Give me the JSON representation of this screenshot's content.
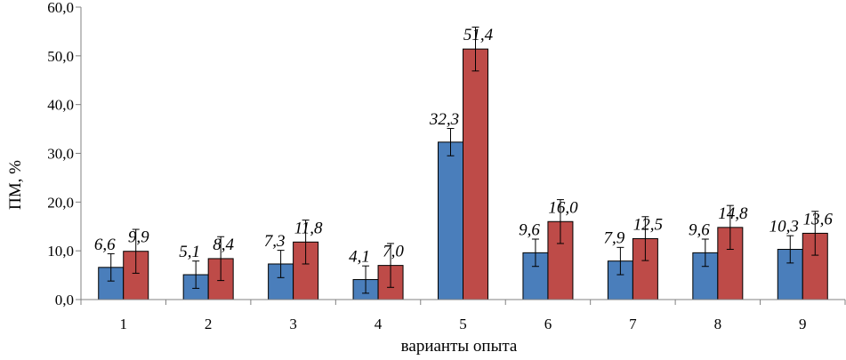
{
  "chart_data": {
    "type": "bar",
    "title": "",
    "xlabel": "варианты опыта",
    "ylabel": "ПМ, %",
    "ylim": [
      0,
      60
    ],
    "yticks": [
      "0,0",
      "10,0",
      "20,0",
      "30,0",
      "40,0",
      "50,0",
      "60,0"
    ],
    "grid": false,
    "legend": "none",
    "categories": [
      "1",
      "2",
      "3",
      "4",
      "5",
      "6",
      "7",
      "8",
      "9"
    ],
    "series": [
      {
        "color": "#4a7ebb",
        "values": [
          6.6,
          5.1,
          7.3,
          4.1,
          32.3,
          9.6,
          7.9,
          9.6,
          10.3
        ],
        "labels": [
          "6,6",
          "5,1",
          "7,3",
          "4,1",
          "32,3",
          "9,6",
          "7,9",
          "9,6",
          "10,3"
        ],
        "errors": [
          2.8,
          2.8,
          2.8,
          2.8,
          2.8,
          2.8,
          2.8,
          2.8,
          2.8
        ]
      },
      {
        "color": "#be4b48",
        "values": [
          9.9,
          8.4,
          11.8,
          7.0,
          51.4,
          16.0,
          12.5,
          14.8,
          13.6
        ],
        "labels": [
          "9,9",
          "8,4",
          "11,8",
          "7,0",
          "51,4",
          "16,0",
          "12,5",
          "14,8",
          "13,6"
        ],
        "errors": [
          4.5,
          4.5,
          4.5,
          4.5,
          4.5,
          4.5,
          4.5,
          4.5,
          4.5
        ]
      }
    ]
  }
}
